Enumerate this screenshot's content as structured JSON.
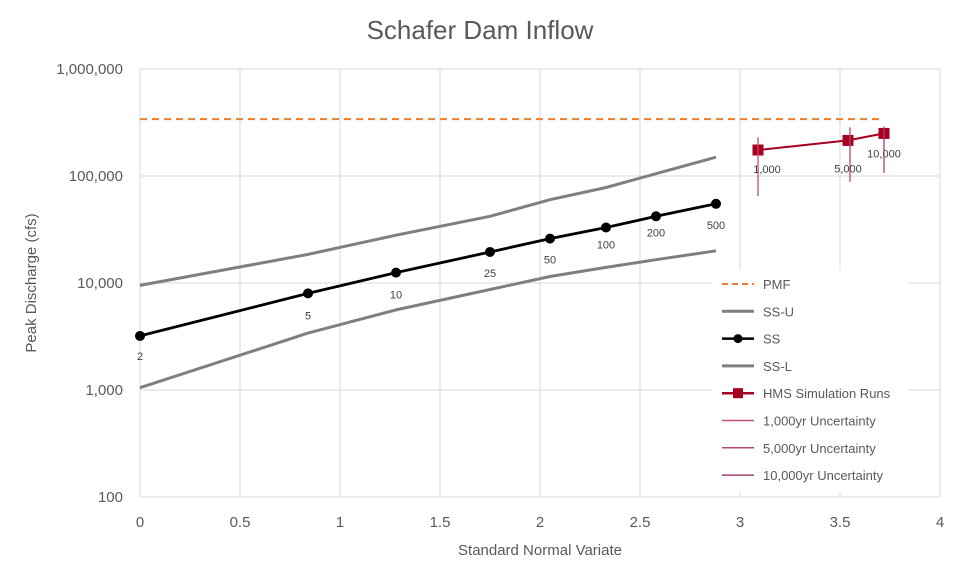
{
  "chart_data": {
    "type": "line",
    "title": "Schafer Dam Inflow",
    "xlabel": "Standard Normal Variate",
    "ylabel": "Peak Discharge (cfs)",
    "xlim": [
      0,
      4
    ],
    "ylim": [
      100,
      1000000
    ],
    "yscale": "log",
    "x_ticks": [
      "0",
      "0.5",
      "1",
      "1.5",
      "2",
      "2.5",
      "3",
      "3.5",
      "4"
    ],
    "y_ticks": [
      "100",
      "1,000",
      "10,000",
      "100,000",
      "1,000,000"
    ],
    "grid": "vertical and horizontal",
    "legend_position": "right",
    "series": [
      {
        "name": "PMF",
        "style": "dashed",
        "color": "#ed7d31",
        "x": [
          0,
          3.72
        ],
        "y": [
          340000,
          340000
        ]
      },
      {
        "name": "SS-U",
        "style": "solid",
        "color": "#7f7f7f",
        "x": [
          0,
          0.84,
          1.28,
          1.75,
          2.05,
          2.33,
          2.58,
          2.88
        ],
        "y": [
          9500,
          18500,
          28000,
          42000,
          60000,
          78000,
          105000,
          150000
        ]
      },
      {
        "name": "SS",
        "style": "solid-markers",
        "color": "#000000",
        "x": [
          0,
          0.84,
          1.28,
          1.75,
          2.05,
          2.33,
          2.58,
          2.88
        ],
        "y": [
          3200,
          8000,
          12500,
          19500,
          26000,
          33000,
          42000,
          55000
        ],
        "point_labels": [
          "2",
          "5",
          "10",
          "25",
          "50",
          "100",
          "200",
          "500"
        ]
      },
      {
        "name": "SS-L",
        "style": "solid",
        "color": "#7f7f7f",
        "x": [
          0,
          0.84,
          1.28,
          1.75,
          2.05,
          2.33,
          2.58,
          2.88
        ],
        "y": [
          1050,
          3400,
          5600,
          8700,
          11500,
          14000,
          16500,
          20000
        ]
      },
      {
        "name": "HMS Simulation Runs",
        "style": "solid-square-markers",
        "color": "#a50021",
        "x": [
          3.09,
          3.54,
          3.72
        ],
        "y": [
          175000,
          215000,
          250000
        ],
        "point_labels": [
          "1,000",
          "5,000",
          "10,000"
        ]
      },
      {
        "name": "1,000yr Uncertainty",
        "style": "vertical-bar",
        "color": "#c05070",
        "x": [
          3.09,
          3.09
        ],
        "y": [
          65000,
          230000
        ]
      },
      {
        "name": "5,000yr Uncertainty",
        "style": "vertical-bar",
        "color": "#b84868",
        "x": [
          3.55,
          3.55
        ],
        "y": [
          88000,
          285000
        ]
      },
      {
        "name": "10,000yr Uncertainty",
        "style": "vertical-bar",
        "color": "#a84070",
        "x": [
          3.72,
          3.72
        ],
        "y": [
          107000,
          290000
        ]
      }
    ]
  }
}
